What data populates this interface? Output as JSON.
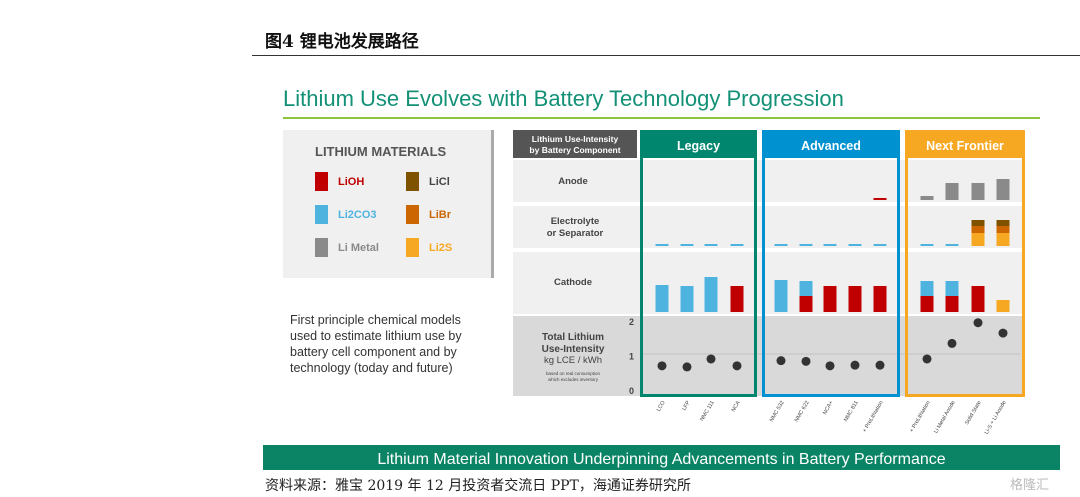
{
  "figure_title": "图4  锂电池发展路径",
  "main_title": "Lithium Use Evolves with Battery Technology Progression",
  "legend": {
    "title": "LITHIUM MATERIALS",
    "items": [
      {
        "name": "LiOH",
        "color": "#c00000"
      },
      {
        "name": "LiCl",
        "color": "#7f5200"
      },
      {
        "name": "Li2CO3",
        "color": "#4fb3e0"
      },
      {
        "name": "LiBr",
        "color": "#cc6600"
      },
      {
        "name": "Li Metal",
        "color": "#8a8a8a"
      },
      {
        "name": "Li2S",
        "color": "#f7a823"
      }
    ]
  },
  "description": "First principle chemical models used to estimate lithium use by battery cell component and by technology (today and future)",
  "footer_banner": "Lithium Material Innovation Underpinning Advancements in Battery Performance",
  "source": "资料来源：雅宝 2019 年 12 月投资者交流日 PPT，海通证券研究所",
  "watermark": "格隆汇",
  "chart_data": {
    "type": "bar",
    "header_label": "Lithium Use-Intensity by Battery Component",
    "rows": [
      "Anode",
      "Electrolyte or Separator",
      "Cathode"
    ],
    "total_label": {
      "title": "Total Lithium Use-Intensity",
      "unit": "kg LCE / kWh",
      "note": "based on real consumption which excludes inventory"
    },
    "ylabel": "kg LCE / kWh",
    "ylim": [
      0,
      2
    ],
    "yticks": [
      "0",
      "1",
      "2"
    ],
    "groups": [
      {
        "name": "Legacy",
        "color": "#00856f",
        "start": 0,
        "count": 4
      },
      {
        "name": "Advanced",
        "color": "#0092d0",
        "start": 4,
        "count": 5
      },
      {
        "name": "Next Frontier",
        "color": "#f7a823",
        "start": 9,
        "count": 4
      }
    ],
    "categories": [
      "LCO",
      "LFP",
      "NMC 111",
      "NCA",
      "NMC 532",
      "NMC 622",
      "NCA+",
      "NMC 811",
      "+ PreLithiation",
      "+ PreLithiation",
      "Li Metal Anode",
      "Solid State",
      "Li-S + Li Anode"
    ],
    "total_intensity": [
      0.7,
      0.67,
      0.9,
      0.7,
      0.85,
      0.83,
      0.7,
      0.72,
      0.72,
      0.9,
      1.35,
      1.95,
      1.65
    ],
    "components": {
      "Anode": [
        [],
        [],
        [],
        [],
        [],
        [],
        [],
        [],
        [
          [
            "LiOH",
            2
          ]
        ],
        [
          [
            "Li Metal",
            4
          ]
        ],
        [
          [
            "Li Metal",
            17
          ]
        ],
        [
          [
            "Li Metal",
            17
          ]
        ],
        [
          [
            "Li Metal",
            21
          ]
        ]
      ],
      "Electrolyte or Separator": [
        [
          [
            "Li2CO3",
            2
          ]
        ],
        [
          [
            "Li2CO3",
            2
          ]
        ],
        [
          [
            "Li2CO3",
            2
          ]
        ],
        [
          [
            "Li2CO3",
            2
          ]
        ],
        [
          [
            "Li2CO3",
            2
          ]
        ],
        [
          [
            "Li2CO3",
            2
          ]
        ],
        [
          [
            "Li2CO3",
            2
          ]
        ],
        [
          [
            "Li2CO3",
            2
          ]
        ],
        [
          [
            "Li2CO3",
            2
          ]
        ],
        [
          [
            "Li2CO3",
            2
          ]
        ],
        [
          [
            "Li2CO3",
            2
          ]
        ],
        [
          [
            "Li2S",
            13
          ],
          [
            "LiBr",
            7
          ],
          [
            "LiCl",
            6
          ]
        ],
        [
          [
            "Li2S",
            13
          ],
          [
            "LiBr",
            7
          ],
          [
            "LiCl",
            6
          ]
        ]
      ],
      "Cathode": [
        [
          [
            "Li2CO3",
            27
          ]
        ],
        [
          [
            "Li2CO3",
            26
          ]
        ],
        [
          [
            "Li2CO3",
            35
          ]
        ],
        [
          [
            "LiOH",
            26
          ]
        ],
        [
          [
            "Li2CO3",
            32
          ]
        ],
        [
          [
            "LiOH",
            16
          ],
          [
            "Li2CO3",
            15
          ]
        ],
        [
          [
            "LiOH",
            26
          ]
        ],
        [
          [
            "LiOH",
            26
          ]
        ],
        [
          [
            "LiOH",
            26
          ]
        ],
        [
          [
            "LiOH",
            16
          ],
          [
            "Li2CO3",
            15
          ]
        ],
        [
          [
            "LiOH",
            16
          ],
          [
            "Li2CO3",
            15
          ]
        ],
        [
          [
            "LiOH",
            26
          ]
        ],
        [
          [
            "Li2S",
            12
          ]
        ]
      ]
    },
    "component_units": "relative intensity (arbitrary scale)"
  }
}
